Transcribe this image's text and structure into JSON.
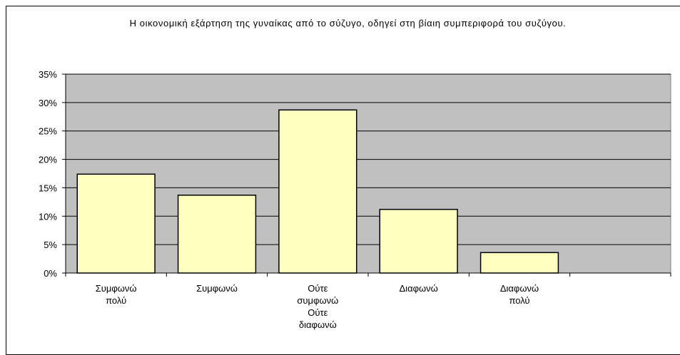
{
  "chart_data": {
    "type": "bar",
    "title": "Η οικονομική εξάρτηση της γυναίκας από το σύζυγο, οδηγεί στη βίαιη συμπεριφορά του συζύγου.",
    "categories": [
      "Συμφωνώ πολύ",
      "Συμφωνώ",
      "Ούτε συμφωνώ Ούτε διαφωνώ",
      "Διαφωνώ",
      "Διαφωνώ πολύ",
      null
    ],
    "values": [
      17.4,
      13.7,
      28.7,
      11.2,
      3.6,
      null
    ],
    "color": "#ffffc0",
    "ylim": [
      0,
      35
    ],
    "yticks": [
      {
        "value": 0,
        "label": "0%"
      },
      {
        "value": 5,
        "label": "5%"
      },
      {
        "value": 10,
        "label": "10%"
      },
      {
        "value": 15,
        "label": "15%"
      },
      {
        "value": 20,
        "label": "20%"
      },
      {
        "value": 25,
        "label": "25%"
      },
      {
        "value": 30,
        "label": "30%"
      },
      {
        "value": 35,
        "label": "35%"
      }
    ],
    "grid": true
  }
}
